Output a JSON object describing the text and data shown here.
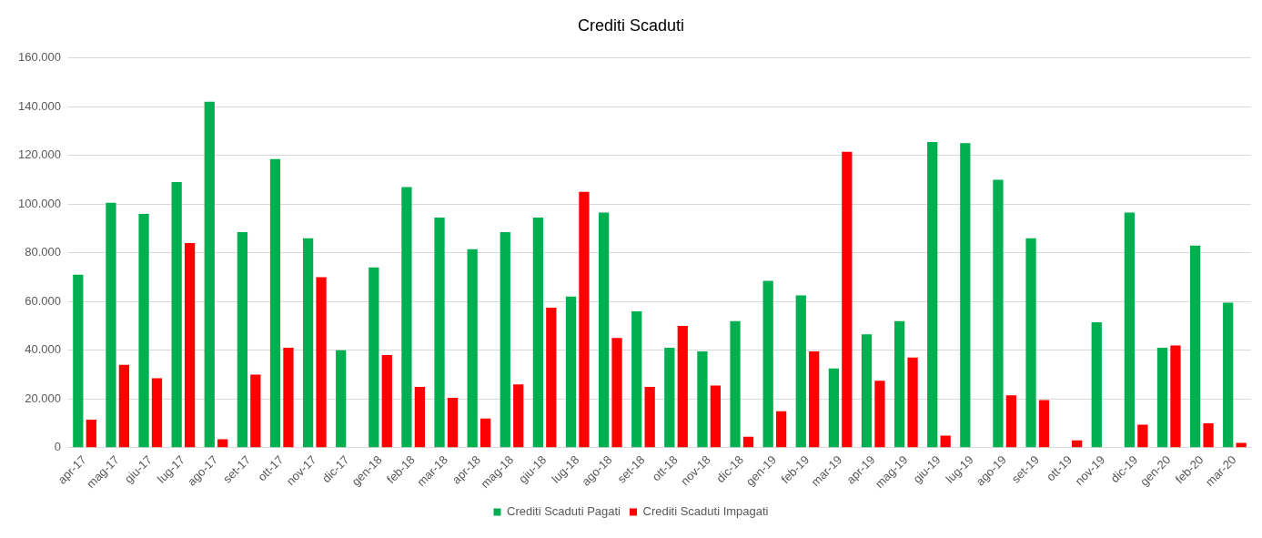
{
  "chart_data": {
    "type": "bar",
    "title": "Crediti Scaduti",
    "categories": [
      "apr-17",
      "mag-17",
      "giu-17",
      "lug-17",
      "ago-17",
      "set-17",
      "ott-17",
      "nov-17",
      "dic-17",
      "gen-18",
      "feb-18",
      "mar-18",
      "apr-18",
      "mag-18",
      "giu-18",
      "lug-18",
      "ago-18",
      "set-18",
      "ott-18",
      "nov-18",
      "dic-18",
      "gen-19",
      "feb-19",
      "mar-19",
      "apr-19",
      "mag-19",
      "giu-19",
      "lug-19",
      "ago-19",
      "set-19",
      "ott-19",
      "nov-19",
      "dic-19",
      "gen-20",
      "feb-20",
      "mar-20"
    ],
    "series": [
      {
        "name": "Crediti Scaduti Pagati",
        "color": "#00b050",
        "values": [
          71000,
          100500,
          96000,
          109000,
          142000,
          88500,
          118500,
          86000,
          40000,
          74000,
          107000,
          94500,
          81500,
          88500,
          94500,
          62000,
          96500,
          56000,
          41000,
          39500,
          52000,
          68500,
          62500,
          32500,
          46500,
          52000,
          125500,
          125000,
          110000,
          86000,
          0,
          51500,
          96500,
          41000,
          83000,
          59500
        ]
      },
      {
        "name": "Crediti Scaduti Impagati",
        "color": "#ff0000",
        "values": [
          11500,
          34000,
          28500,
          84000,
          3500,
          30000,
          41000,
          70000,
          0,
          38000,
          25000,
          20500,
          12000,
          26000,
          57500,
          105000,
          45000,
          25000,
          50000,
          25500,
          4500,
          15000,
          39500,
          121500,
          27500,
          37000,
          5000,
          0,
          21500,
          19500,
          3000,
          0,
          9500,
          42000,
          10000,
          2000
        ]
      }
    ],
    "ylim": [
      0,
      160000
    ],
    "yticks": [
      {
        "value": 0,
        "label": "0"
      },
      {
        "value": 20000,
        "label": "20.000"
      },
      {
        "value": 40000,
        "label": "40.000"
      },
      {
        "value": 60000,
        "label": "60.000"
      },
      {
        "value": 80000,
        "label": "80.000"
      },
      {
        "value": 100000,
        "label": "100.000"
      },
      {
        "value": 120000,
        "label": "120.000"
      },
      {
        "value": 140000,
        "label": "140.000"
      },
      {
        "value": 160000,
        "label": "160.000"
      }
    ],
    "grid": "y",
    "legend": "bottom"
  }
}
